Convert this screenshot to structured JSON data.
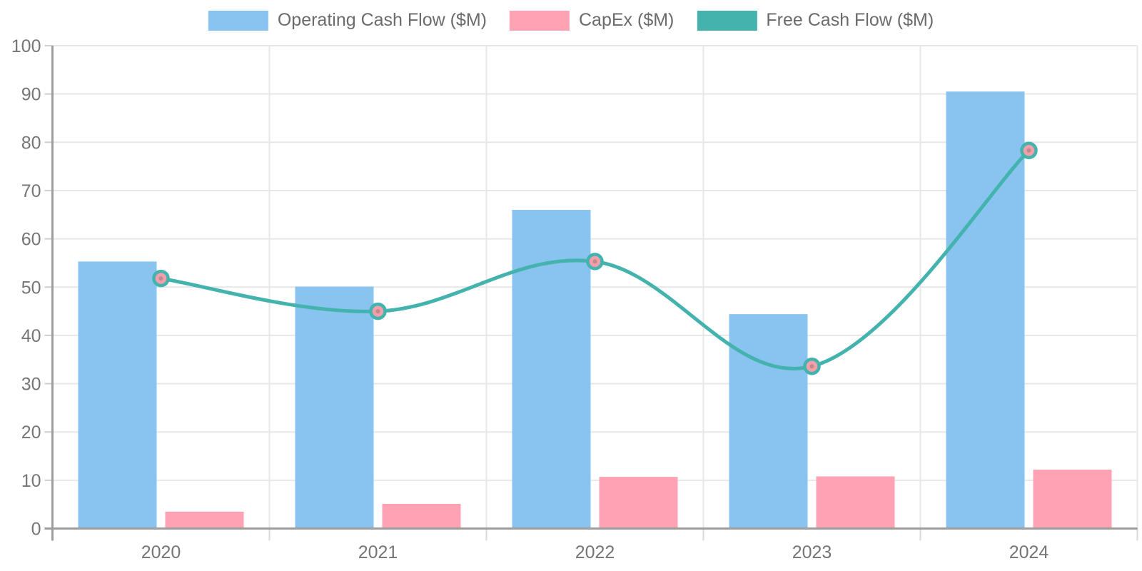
{
  "chart_data": {
    "type": "bar",
    "subtype": "combo-bar-line",
    "title": "",
    "categories": [
      "2020",
      "2021",
      "2022",
      "2023",
      "2024"
    ],
    "series": [
      {
        "name": "Operating Cash Flow ($M)",
        "type": "bar",
        "color": "#88C4EF",
        "values": [
          55.3,
          50.1,
          66,
          44.4,
          90.5
        ]
      },
      {
        "name": "CapEx ($M)",
        "type": "bar",
        "color": "#FFA2B4",
        "values": [
          3.5,
          5.1,
          10.7,
          10.8,
          12.2
        ]
      },
      {
        "name": "Free Cash Flow ($M)",
        "type": "line",
        "color": "#44B3AE",
        "marker_fill": "#EFA0AB",
        "marker_dot": "#C5878E",
        "values": [
          51.8,
          45,
          55.3,
          33.6,
          78.3
        ]
      }
    ],
    "ylim": [
      0,
      100
    ],
    "yticks": [
      0,
      10,
      20,
      30,
      40,
      50,
      60,
      70,
      80,
      90,
      100
    ],
    "grid": true,
    "legend_position": "top",
    "axis_color": "#9E9E9E",
    "gridline_color": "#E7E7E7",
    "tick_label_color": "#757575"
  }
}
